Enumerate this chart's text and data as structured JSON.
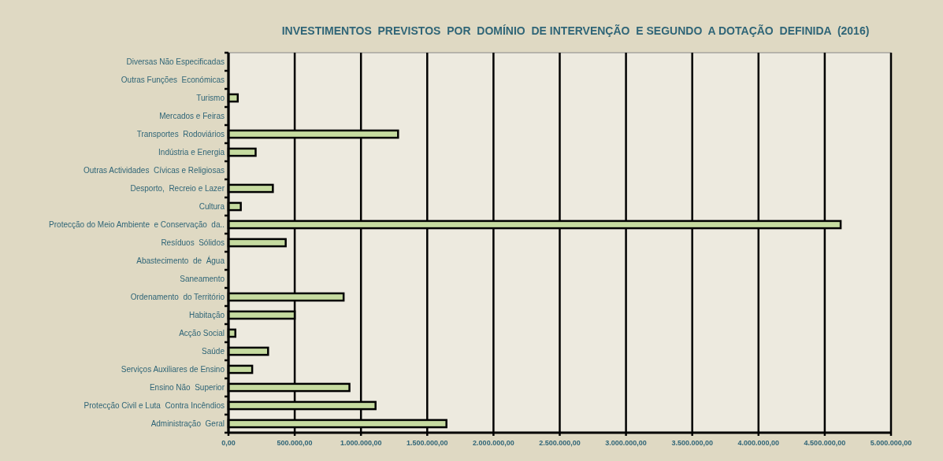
{
  "chart_data": {
    "type": "bar",
    "orientation": "horizontal",
    "title": "INVESTIMENTOS  PREVISTOS  POR  DOMÍNIO  DE INTERVENÇÃO  E SEGUNDO  A DOTAÇÃO  DEFINIDA  (2016)",
    "categories": [
      "Diversas Não Especificadas",
      "Outras Funções  Económicas",
      "Turismo",
      "Mercados e Feiras",
      "Transportes  Rodoviários",
      "Indústria e Energia",
      "Outras Actividades  Cívicas e Religiosas",
      "Desporto,  Recreio e Lazer",
      "Cultura",
      "Protecção do Meio Ambiente  e Conservação  da..",
      "Resíduos  Sólidos",
      "Abastecimento  de  Água",
      "Saneamento",
      "Ordenamento  do Território",
      "Habitação",
      "Acção Social",
      "Saúde",
      "Serviços Auxiliares de Ensino",
      "Ensino Não  Superior",
      "Protecção Civil e Luta  Contra Incêndios",
      "Administração  Geral"
    ],
    "values": [
      0,
      0,
      70000,
      0,
      1280000,
      205000,
      0,
      335000,
      93000,
      4620000,
      432000,
      0,
      0,
      869000,
      500000,
      52000,
      299000,
      179000,
      913000,
      1110000,
      1645000
    ],
    "color": "#c6dba0",
    "xlim": [
      0,
      5000000
    ],
    "xticks": [
      {
        "value": 0,
        "label": "0,00"
      },
      {
        "value": 500000,
        "label": "500.000,00"
      },
      {
        "value": 1000000,
        "label": "1.000.000,00"
      },
      {
        "value": 1500000,
        "label": "1.500.000,00"
      },
      {
        "value": 2000000,
        "label": "2.000.000,00"
      },
      {
        "value": 2500000,
        "label": "2.500.000,00"
      },
      {
        "value": 3000000,
        "label": "3.000.000,00"
      },
      {
        "value": 3500000,
        "label": "3.500.000,00"
      },
      {
        "value": 4000000,
        "label": "4.000.000,00"
      },
      {
        "value": 4500000,
        "label": "4.500.000,00"
      },
      {
        "value": 5000000,
        "label": "5.000.000,00"
      }
    ],
    "grid": "x"
  }
}
